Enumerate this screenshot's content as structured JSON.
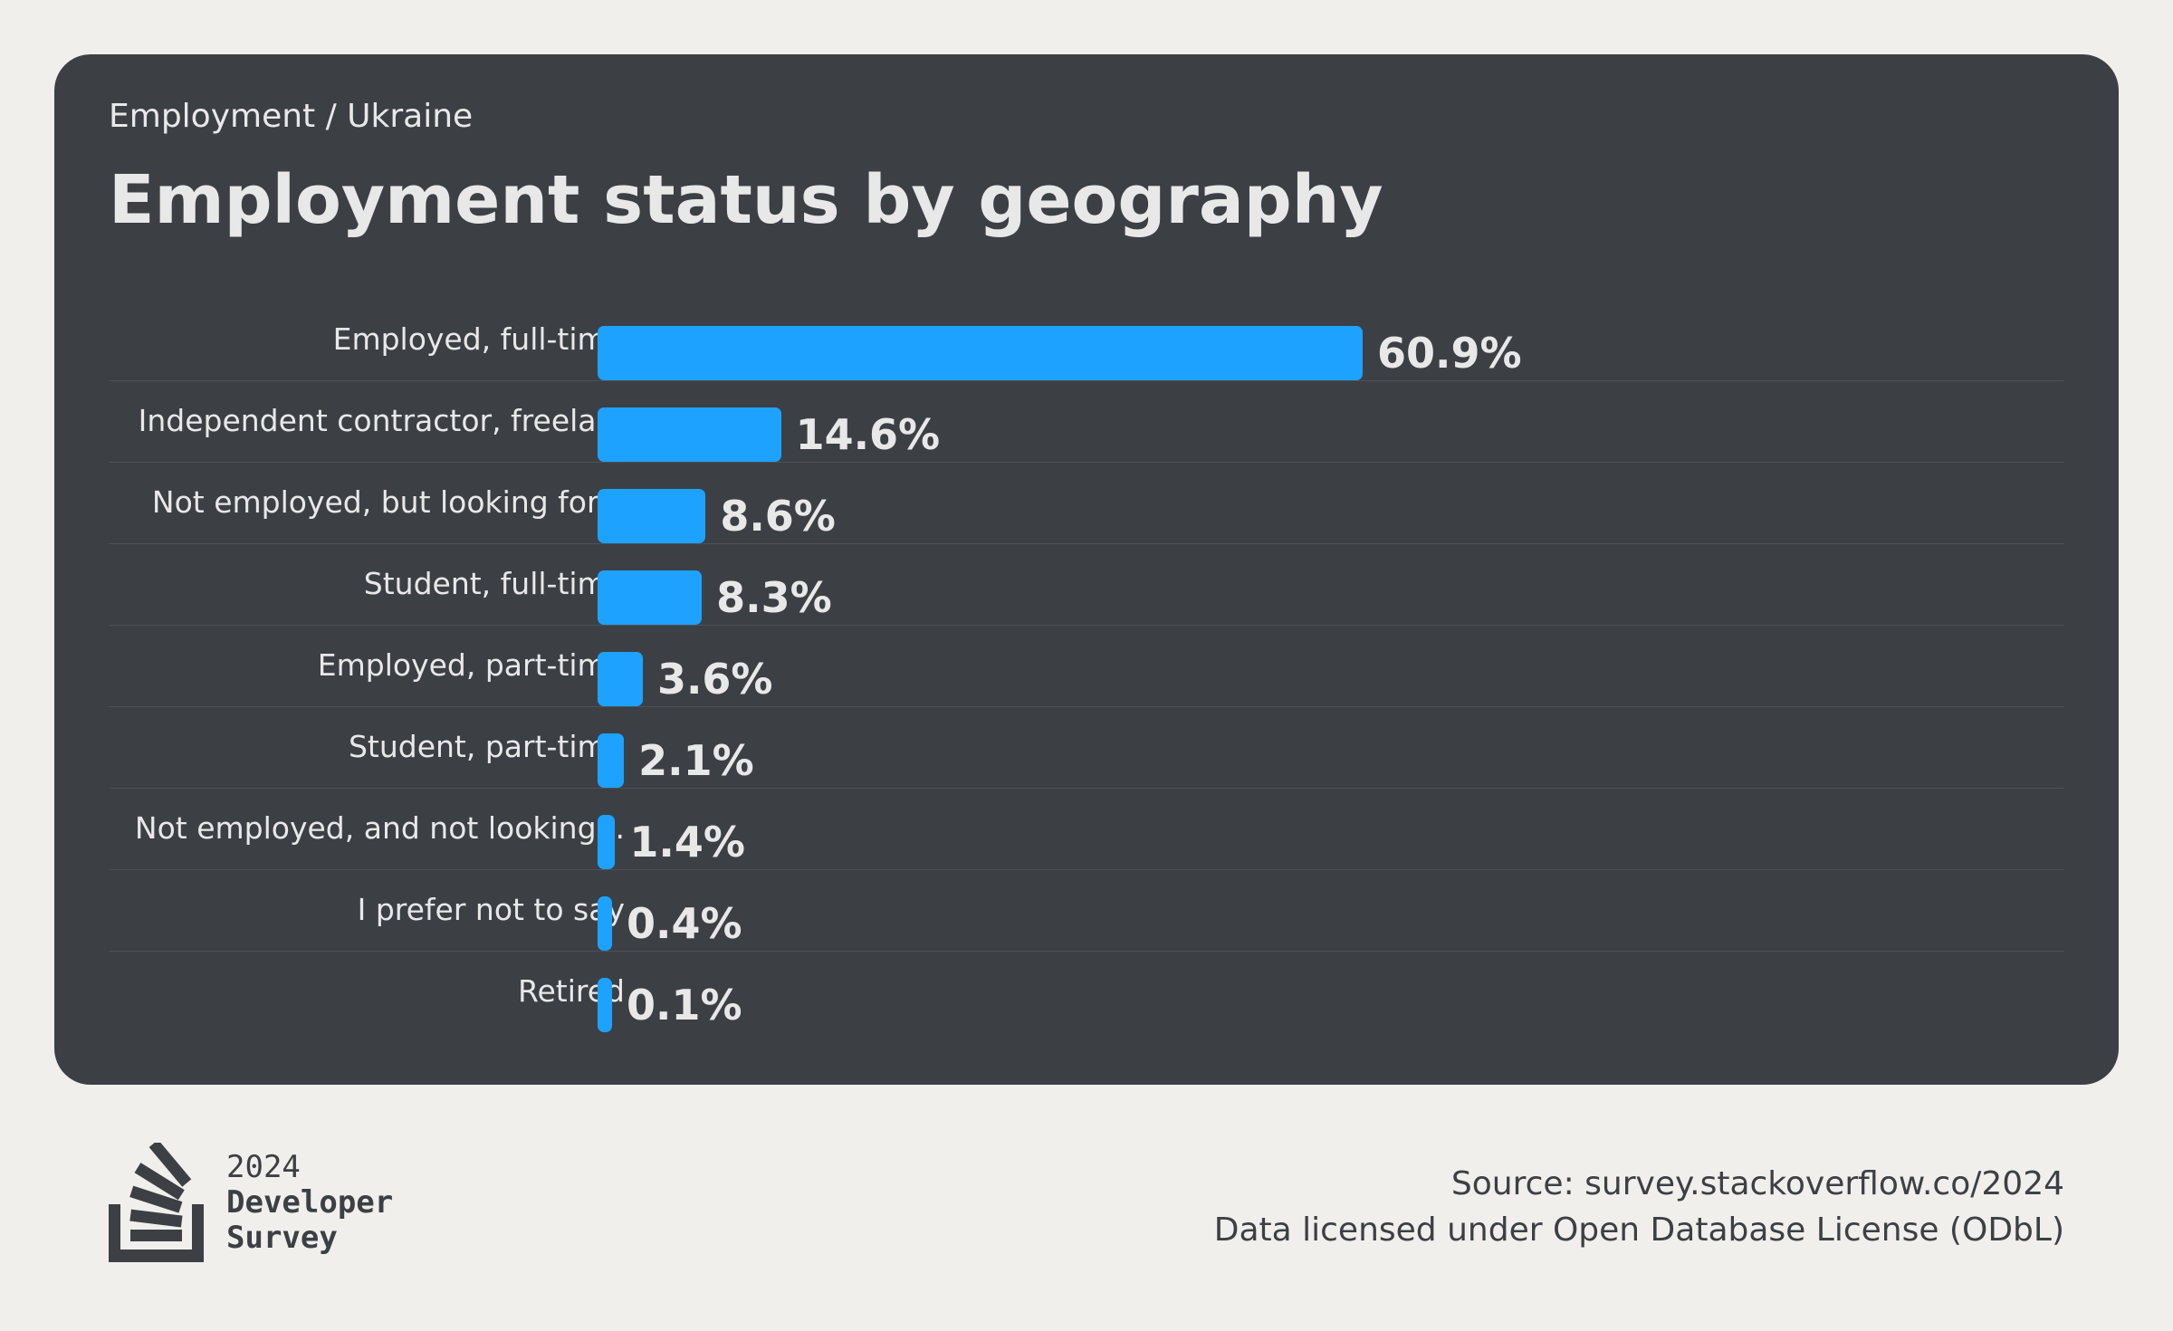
{
  "header": {
    "breadcrumb": "Employment / Ukraine",
    "title": "Employment status by geography"
  },
  "chart_data": {
    "type": "bar",
    "orientation": "horizontal",
    "title": "Employment status by geography",
    "categories": [
      "Employed, full-time",
      "Independent contractor, freela...",
      "Not employed, but looking for...",
      "Student, full-time",
      "Employed, part-time",
      "Student, part-time",
      "Not employed, and not looking...",
      "I prefer not to say",
      "Retired"
    ],
    "values": [
      60.9,
      14.6,
      8.6,
      8.3,
      3.6,
      2.1,
      1.4,
      0.4,
      0.1
    ],
    "value_labels": [
      "60.9%",
      "14.6%",
      "8.6%",
      "8.3%",
      "3.6%",
      "2.1%",
      "1.4%",
      "0.4%",
      "0.1%"
    ],
    "unit": "%",
    "grid": false,
    "colors": {
      "bar": "#1ea2ff",
      "card_background": "#3c4045",
      "page_background": "#f0efeb",
      "text_light": "#e8e8e8",
      "text_dark": "#3c4045"
    }
  },
  "footer": {
    "logo_icon": "stack-overflow-logo-icon",
    "logo_year": "2024",
    "logo_line1": "Developer",
    "logo_line2": "Survey",
    "source": "Source: survey.stackoverflow.co/2024",
    "license": "Data licensed under Open Database License (ODbL)"
  }
}
